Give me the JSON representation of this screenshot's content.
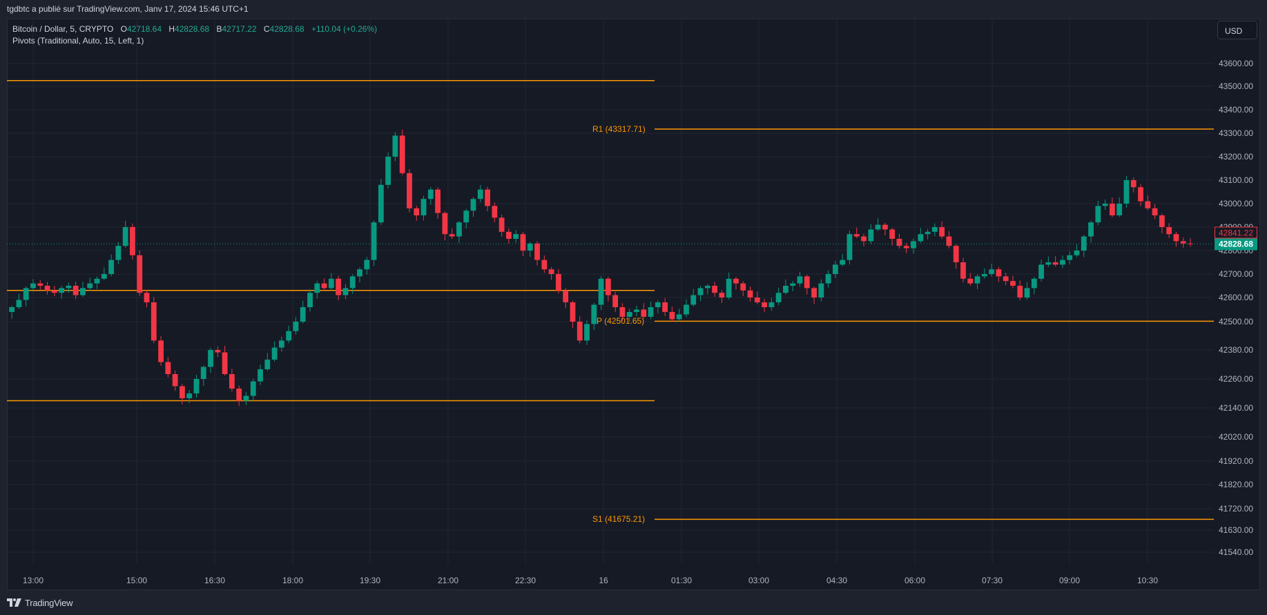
{
  "attribution": "tgdbtc a publié sur TradingView.com, Janv 17, 2024 15:46 UTC+1",
  "legend": {
    "symbol": "Bitcoin / Dollar, 5, CRYPTO",
    "open_label": "O",
    "open": "42718.64",
    "high_label": "H",
    "high": "42828.68",
    "bid_label": "B",
    "bid": "42717.22",
    "close_label": "C",
    "close": "42828.68",
    "change": "+110.04 (+0.26%)",
    "indicator": "Pivots (Traditional, Auto, 15, Left, 1)"
  },
  "currency_button": "USD",
  "price_tags": {
    "bid": "42841.22",
    "last": "42828.68"
  },
  "pivots": {
    "r1_label": "R1 (43317.71)",
    "p_label": "P (42501.65)",
    "s1_label": "S1 (41675.21)"
  },
  "footer": {
    "brand": "TradingView"
  },
  "colors": {
    "up": "#089981",
    "down": "#f23645",
    "pivot": "#ff9800",
    "grid": "#232733",
    "background": "#161a25"
  },
  "chart_data": {
    "type": "candlestick",
    "title": "Bitcoin / Dollar, 5, CRYPTO",
    "xlabel": "",
    "ylabel": "USD",
    "ylim": [
      41450,
      43750
    ],
    "grid": true,
    "legend_position": "top-left",
    "y_ticks": [
      "43600.00",
      "43500.00",
      "43400.00",
      "43300.00",
      "43200.00",
      "43100.00",
      "43000.00",
      "42900.00",
      "42800.00",
      "42700.00",
      "42600.00",
      "42500.00",
      "42380.00",
      "42260.00",
      "42140.00",
      "42020.00",
      "41920.00",
      "41820.00",
      "41720.00",
      "41630.00",
      "41540.00"
    ],
    "x_ticks": [
      "13:00",
      "15:00",
      "16:30",
      "18:00",
      "19:30",
      "21:00",
      "22:30",
      "16",
      "01:30",
      "03:00",
      "04:30",
      "06:00",
      "07:30",
      "09:00",
      "10:30"
    ],
    "last_price": 42828.68,
    "bid_price": 42841.22,
    "pivot_levels": {
      "previous_session": {
        "R1": 43525,
        "P": 42630,
        "S1": 42170
      },
      "current_session": {
        "R1": 43317.71,
        "P": 42501.65,
        "S1": 41675.21
      }
    },
    "close_series": [
      42560,
      42590,
      42640,
      42660,
      42650,
      42630,
      42620,
      42640,
      42650,
      42610,
      42640,
      42660,
      42680,
      42700,
      42760,
      42820,
      42900,
      42780,
      42620,
      42580,
      42420,
      42330,
      42280,
      42230,
      42180,
      42200,
      42260,
      42310,
      42380,
      42370,
      42280,
      42220,
      42170,
      42190,
      42250,
      42300,
      42340,
      42390,
      42420,
      42460,
      42500,
      42560,
      42620,
      42660,
      42640,
      42680,
      42610,
      42640,
      42690,
      42720,
      42760,
      42920,
      43080,
      43200,
      43290,
      43130,
      42980,
      42950,
      43020,
      43060,
      42960,
      42870,
      42860,
      42920,
      42970,
      43020,
      43060,
      42990,
      42940,
      42880,
      42850,
      42870,
      42800,
      42830,
      42760,
      42720,
      42700,
      42630,
      42580,
      42500,
      42420,
      42490,
      42570,
      42680,
      42610,
      42560,
      42520,
      42540,
      42550,
      42520,
      42560,
      42580,
      42540,
      42510,
      42530,
      42570,
      42610,
      42640,
      42650,
      42620,
      42600,
      42680,
      42660,
      42630,
      42600,
      42580,
      42560,
      42580,
      42620,
      42650,
      42660,
      42690,
      42640,
      42600,
      42660,
      42700,
      42740,
      42760,
      42870,
      42860,
      42840,
      42890,
      42910,
      42890,
      42850,
      42820,
      42810,
      42840,
      42870,
      42880,
      42900,
      42860,
      42820,
      42750,
      42680,
      42660,
      42690,
      42700,
      42720,
      42690,
      42670,
      42650,
      42600,
      42640,
      42680,
      42740,
      42750,
      42740,
      42760,
      42780,
      42800,
      42860,
      42920,
      42990,
      43000,
      42950,
      43000,
      43100,
      43070,
      43010,
      42980,
      42950,
      42900,
      42870,
      42840,
      42830,
      42829
    ]
  }
}
